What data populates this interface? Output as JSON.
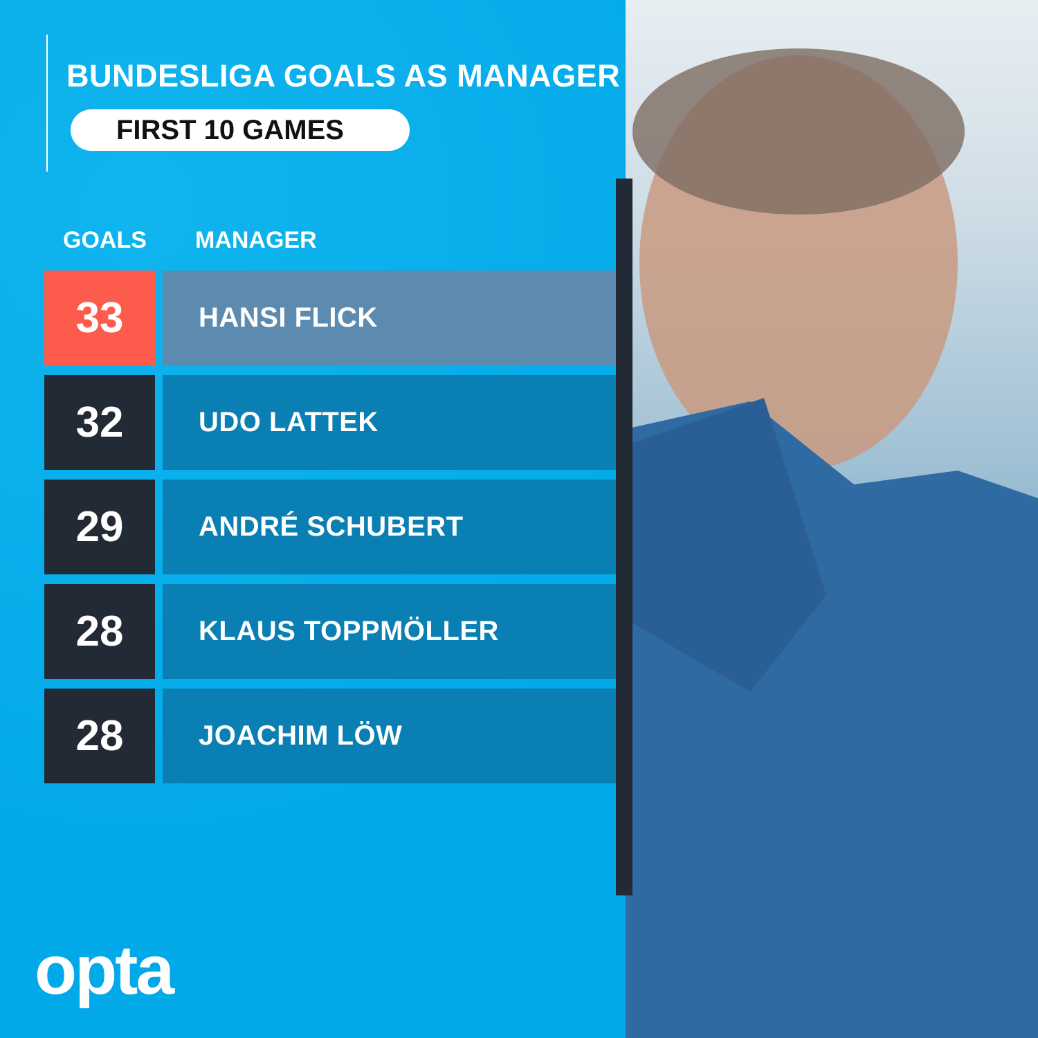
{
  "header": {
    "title": "BUNDESLIGA GOALS AS MANAGER",
    "subtitle": "FIRST 10 GAMES"
  },
  "brand": {
    "logo_text": "opta"
  },
  "colors": {
    "background": "#04adeb",
    "highlight_goal": "#fd5b4c",
    "highlight_name": "#5d8bb0",
    "goal_box": "#212a35",
    "name_box": "#0a7fb4"
  },
  "chart_data": {
    "type": "table",
    "title": "BUNDESLIGA GOALS AS MANAGER",
    "subtitle": "FIRST 10 GAMES",
    "columns": [
      "GOALS",
      "MANAGER"
    ],
    "rows": [
      {
        "goals": 33,
        "manager": "HANSI FLICK",
        "highlight": true
      },
      {
        "goals": 32,
        "manager": "UDO LATTEK"
      },
      {
        "goals": 29,
        "manager": "ANDRÉ SCHUBERT"
      },
      {
        "goals": 28,
        "manager": "KLAUS TOPPMÖLLER"
      },
      {
        "goals": 28,
        "manager": "JOACHIM LÖW"
      }
    ]
  }
}
